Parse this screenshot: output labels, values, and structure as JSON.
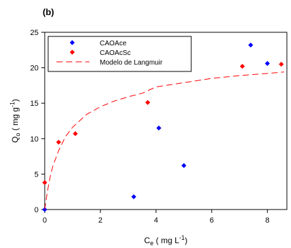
{
  "chart_data": {
    "type": "scatter",
    "panel_label": "(b)",
    "xlabel": {
      "main": "C",
      "sub": "e",
      "rest": " ( mg L",
      "sup": "-1",
      "end": ")"
    },
    "ylabel": {
      "main": "Q",
      "sub": "o",
      "rest": " ( mg g",
      "sup": "-1",
      "end": ")"
    },
    "xlim": [
      0,
      8.7
    ],
    "ylim": [
      0,
      25
    ],
    "xticks": [
      0,
      2,
      4,
      6,
      8
    ],
    "yticks": [
      0,
      5,
      10,
      15,
      20,
      25
    ],
    "grid": false,
    "legend_position": "top-left",
    "series": [
      {
        "name": "CAOAce",
        "kind": "points",
        "color": "#0000ff",
        "marker": "diamond",
        "points": [
          [
            0.0,
            0.0
          ],
          [
            3.2,
            1.8
          ],
          [
            4.1,
            11.5
          ],
          [
            5.0,
            6.2
          ],
          [
            7.4,
            23.2
          ],
          [
            8.0,
            20.6
          ]
        ]
      },
      {
        "name": "CAOAcSc",
        "kind": "points",
        "color": "#ff0000",
        "marker": "diamond",
        "points": [
          [
            0.0,
            3.8
          ],
          [
            0.5,
            9.5
          ],
          [
            1.1,
            10.7
          ],
          [
            3.7,
            15.1
          ],
          [
            7.1,
            20.2
          ],
          [
            8.5,
            20.5
          ]
        ]
      },
      {
        "name": "Modelo de Langmuir",
        "kind": "line",
        "color": "#ff0000",
        "dash": "long-dash",
        "points": [
          [
            0.0,
            0.0
          ],
          [
            0.1,
            2.6
          ],
          [
            0.2,
            4.7
          ],
          [
            0.3,
            6.2
          ],
          [
            0.5,
            8.3
          ],
          [
            0.75,
            10.3
          ],
          [
            1.0,
            11.6
          ],
          [
            1.5,
            13.4
          ],
          [
            2.0,
            14.5
          ],
          [
            2.5,
            15.3
          ],
          [
            3.0,
            15.9
          ],
          [
            3.5,
            16.4
          ],
          [
            4.0,
            17.3
          ],
          [
            5.0,
            17.9
          ],
          [
            6.0,
            18.5
          ],
          [
            7.0,
            18.9
          ],
          [
            8.0,
            19.2
          ],
          [
            8.6,
            19.4
          ]
        ]
      }
    ]
  }
}
